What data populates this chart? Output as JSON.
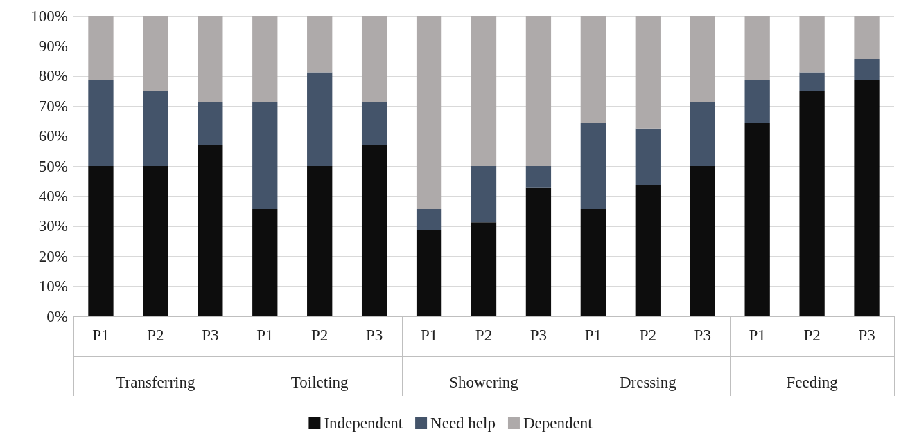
{
  "chart_data": {
    "type": "bar",
    "stacked": true,
    "categories": [
      "P1",
      "P2",
      "P3",
      "P1",
      "P2",
      "P3",
      "P1",
      "P2",
      "P3",
      "P1",
      "P2",
      "P3",
      "P1",
      "P2",
      "P3"
    ],
    "annotations": [
      "Transferring",
      "Toileting",
      "Showering",
      "Dressing",
      "Feeding"
    ],
    "series": [
      {
        "name": "Independent",
        "color": "#0d0d0d",
        "values": [
          50,
          50,
          57.1,
          35.7,
          50,
          57.1,
          28.6,
          31.3,
          42.9,
          35.7,
          43.8,
          50,
          64.3,
          75,
          78.6
        ]
      },
      {
        "name": "Need help",
        "color": "#44546a",
        "values": [
          28.6,
          25,
          14.3,
          35.7,
          31.2,
          14.3,
          7.1,
          18.7,
          7.1,
          28.6,
          18.7,
          21.4,
          14.3,
          6.2,
          7.1
        ]
      },
      {
        "name": "Dependent",
        "color": "#aeaaaa",
        "values": [
          21.4,
          25,
          28.6,
          28.6,
          18.8,
          28.6,
          64.3,
          50,
          50,
          35.7,
          37.5,
          28.6,
          21.4,
          18.8,
          14.3
        ]
      }
    ],
    "ylim": [
      0,
      100
    ],
    "yticks": [
      {
        "value": 0,
        "label": "0%"
      },
      {
        "value": 10,
        "label": "10%"
      },
      {
        "value": 20,
        "label": "20%"
      },
      {
        "value": 30,
        "label": "30%"
      },
      {
        "value": 40,
        "label": "40%"
      },
      {
        "value": 50,
        "label": "50%"
      },
      {
        "value": 60,
        "label": "60%"
      },
      {
        "value": 70,
        "label": "70%"
      },
      {
        "value": 80,
        "label": "80%"
      },
      {
        "value": 90,
        "label": "90%"
      },
      {
        "value": 100,
        "label": "100%"
      }
    ],
    "grid": "y",
    "legend": "bottom"
  }
}
